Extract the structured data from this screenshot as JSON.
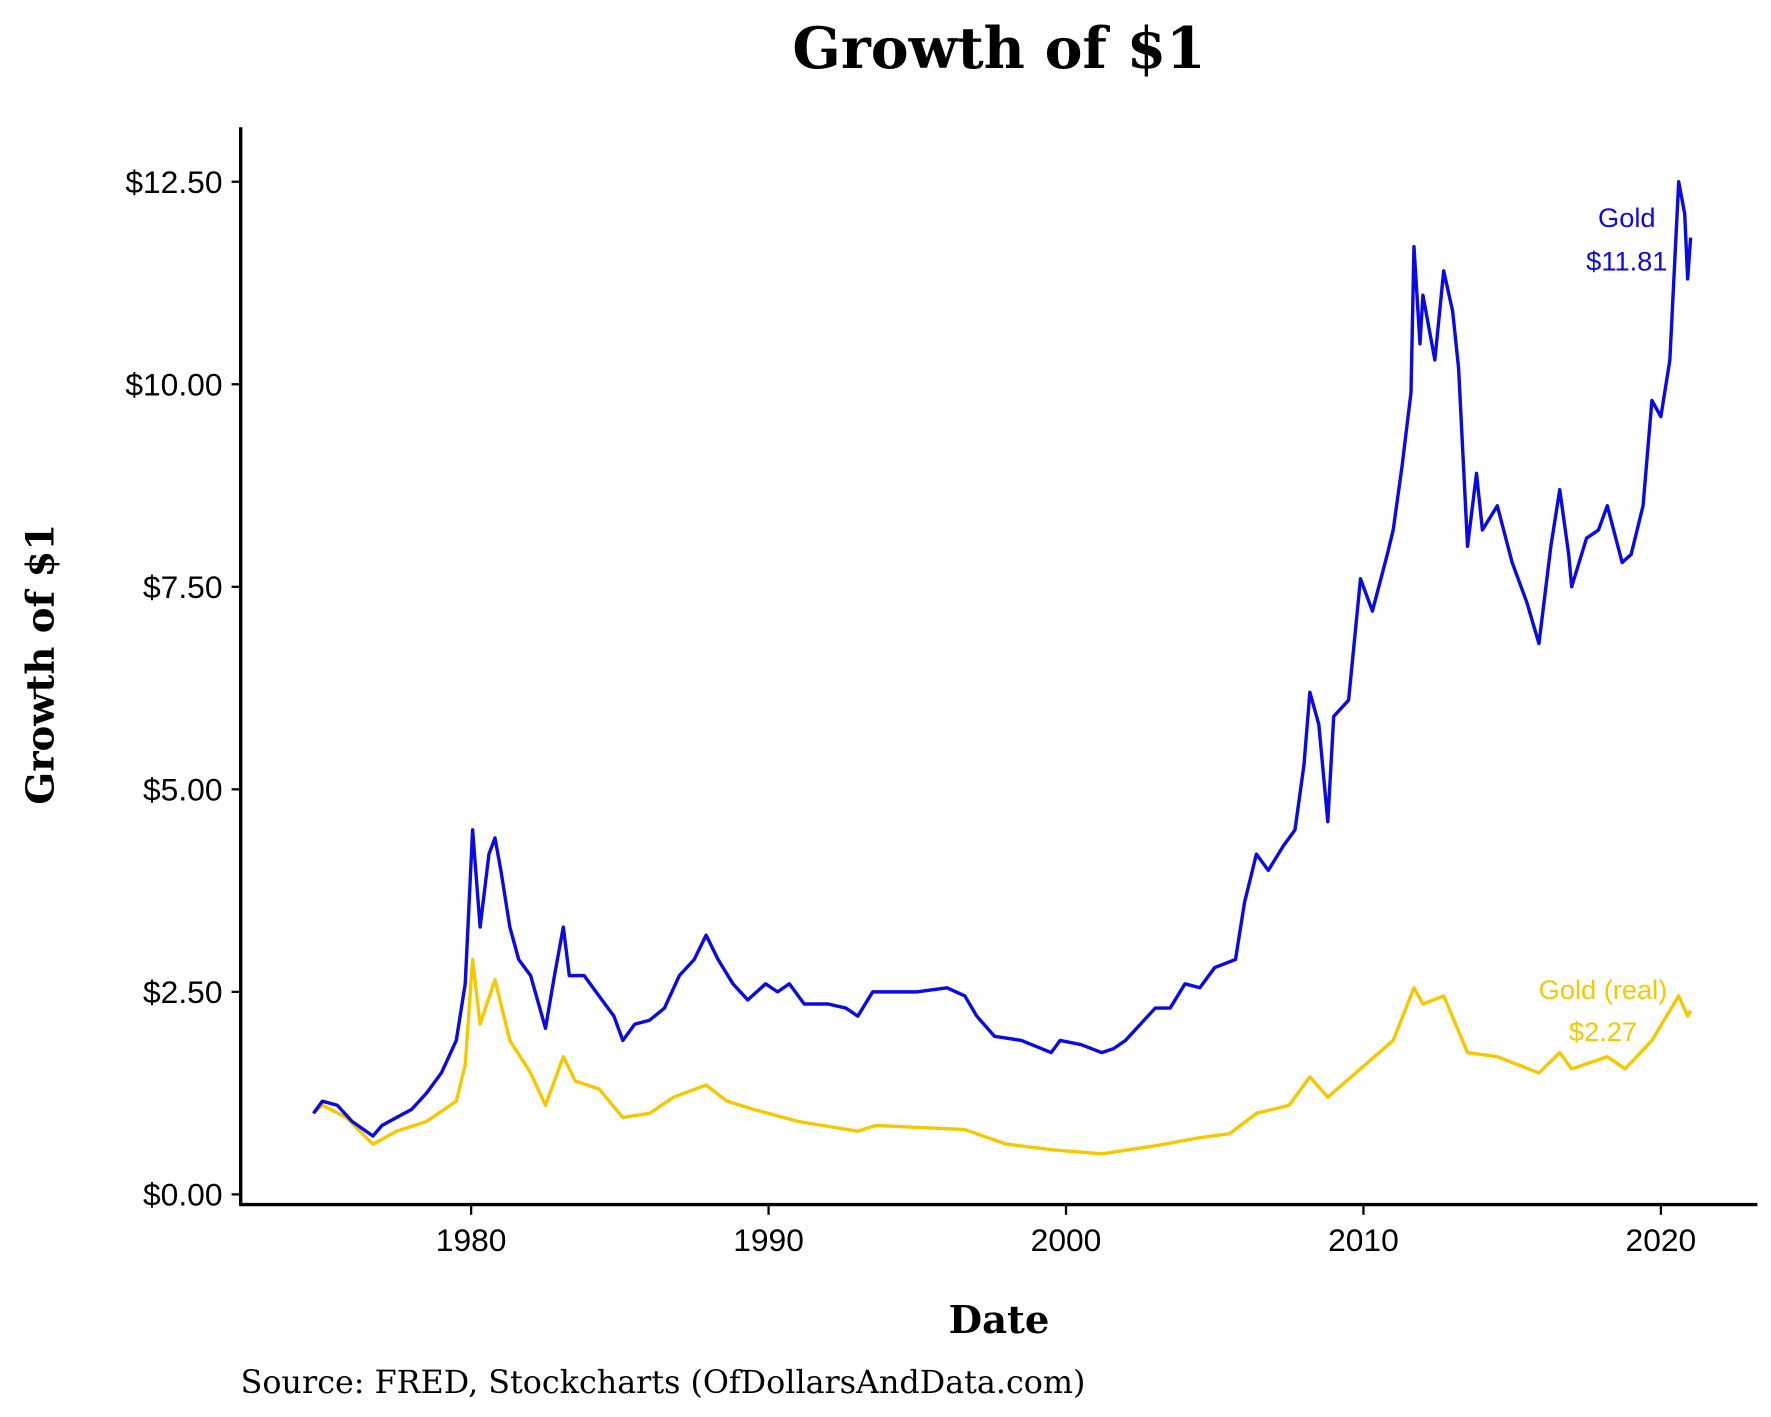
{
  "chart_data": {
    "type": "line",
    "title": "Growth of $1",
    "xlabel": "Date",
    "ylabel": "Growth of $1",
    "source": "Source:  FRED, Stockcharts (OfDollarsAndData.com)",
    "xlim": [
      1974,
      2023
    ],
    "ylim": [
      0,
      12.9
    ],
    "x_ticks": [
      1980,
      1990,
      2000,
      2010,
      2020
    ],
    "x_tick_labels": [
      "1980",
      "1990",
      "2000",
      "2010",
      "2020"
    ],
    "y_ticks": [
      0,
      2.5,
      5,
      7.5,
      10,
      12.5
    ],
    "y_tick_labels": [
      "$0.00",
      "$2.50",
      "$5.00",
      "$7.50",
      "$10.00",
      "$12.50"
    ],
    "grid": false,
    "legend": "none (direct labels)",
    "series": [
      {
        "name": "Gold",
        "end_label": "$11.81",
        "color": "#0a0ae6",
        "points": [
          [
            1974.7,
            1.0
          ],
          [
            1975.0,
            1.15
          ],
          [
            1975.5,
            1.1
          ],
          [
            1976.0,
            0.9
          ],
          [
            1976.7,
            0.72
          ],
          [
            1977.0,
            0.85
          ],
          [
            1977.5,
            0.95
          ],
          [
            1978.0,
            1.05
          ],
          [
            1978.5,
            1.25
          ],
          [
            1979.0,
            1.5
          ],
          [
            1979.5,
            1.9
          ],
          [
            1979.8,
            2.6
          ],
          [
            1980.05,
            4.5
          ],
          [
            1980.3,
            3.3
          ],
          [
            1980.6,
            4.2
          ],
          [
            1980.8,
            4.4
          ],
          [
            1981.0,
            4.0
          ],
          [
            1981.3,
            3.3
          ],
          [
            1981.6,
            2.9
          ],
          [
            1982.0,
            2.7
          ],
          [
            1982.5,
            2.05
          ],
          [
            1982.8,
            2.7
          ],
          [
            1983.1,
            3.3
          ],
          [
            1983.3,
            2.7
          ],
          [
            1983.8,
            2.7
          ],
          [
            1984.2,
            2.5
          ],
          [
            1984.8,
            2.2
          ],
          [
            1985.1,
            1.9
          ],
          [
            1985.5,
            2.1
          ],
          [
            1986.0,
            2.15
          ],
          [
            1986.5,
            2.3
          ],
          [
            1987.0,
            2.7
          ],
          [
            1987.5,
            2.9
          ],
          [
            1987.9,
            3.2
          ],
          [
            1988.3,
            2.9
          ],
          [
            1988.8,
            2.6
          ],
          [
            1989.3,
            2.4
          ],
          [
            1989.9,
            2.6
          ],
          [
            1990.3,
            2.5
          ],
          [
            1990.7,
            2.6
          ],
          [
            1991.2,
            2.35
          ],
          [
            1992.0,
            2.35
          ],
          [
            1992.6,
            2.3
          ],
          [
            1993.0,
            2.2
          ],
          [
            1993.5,
            2.5
          ],
          [
            1994.0,
            2.5
          ],
          [
            1995.0,
            2.5
          ],
          [
            1996.0,
            2.55
          ],
          [
            1996.6,
            2.45
          ],
          [
            1997.0,
            2.2
          ],
          [
            1997.6,
            1.95
          ],
          [
            1998.5,
            1.9
          ],
          [
            1999.5,
            1.75
          ],
          [
            1999.8,
            1.9
          ],
          [
            2000.5,
            1.85
          ],
          [
            2001.2,
            1.75
          ],
          [
            2001.6,
            1.8
          ],
          [
            2002.0,
            1.9
          ],
          [
            2002.5,
            2.1
          ],
          [
            2003.0,
            2.3
          ],
          [
            2003.5,
            2.3
          ],
          [
            2004.0,
            2.6
          ],
          [
            2004.5,
            2.55
          ],
          [
            2005.0,
            2.8
          ],
          [
            2005.7,
            2.9
          ],
          [
            2006.0,
            3.6
          ],
          [
            2006.4,
            4.2
          ],
          [
            2006.8,
            4.0
          ],
          [
            2007.3,
            4.3
          ],
          [
            2007.7,
            4.5
          ],
          [
            2008.0,
            5.3
          ],
          [
            2008.2,
            6.2
          ],
          [
            2008.5,
            5.8
          ],
          [
            2008.8,
            4.6
          ],
          [
            2009.0,
            5.9
          ],
          [
            2009.5,
            6.1
          ],
          [
            2009.9,
            7.6
          ],
          [
            2010.3,
            7.2
          ],
          [
            2010.8,
            7.9
          ],
          [
            2011.0,
            8.2
          ],
          [
            2011.3,
            9.0
          ],
          [
            2011.6,
            9.9
          ],
          [
            2011.7,
            11.7
          ],
          [
            2011.9,
            10.5
          ],
          [
            2012.0,
            11.1
          ],
          [
            2012.4,
            10.3
          ],
          [
            2012.7,
            11.4
          ],
          [
            2013.0,
            10.9
          ],
          [
            2013.2,
            10.2
          ],
          [
            2013.5,
            8.0
          ],
          [
            2013.8,
            8.9
          ],
          [
            2014.0,
            8.2
          ],
          [
            2014.5,
            8.5
          ],
          [
            2015.0,
            7.8
          ],
          [
            2015.5,
            7.3
          ],
          [
            2015.9,
            6.8
          ],
          [
            2016.3,
            8.0
          ],
          [
            2016.6,
            8.7
          ],
          [
            2016.9,
            7.9
          ],
          [
            2017.0,
            7.5
          ],
          [
            2017.5,
            8.1
          ],
          [
            2017.9,
            8.2
          ],
          [
            2018.2,
            8.5
          ],
          [
            2018.7,
            7.8
          ],
          [
            2019.0,
            7.9
          ],
          [
            2019.4,
            8.5
          ],
          [
            2019.7,
            9.8
          ],
          [
            2020.0,
            9.6
          ],
          [
            2020.3,
            10.3
          ],
          [
            2020.6,
            12.5
          ],
          [
            2020.8,
            12.1
          ],
          [
            2020.9,
            11.3
          ],
          [
            2021.0,
            11.81
          ]
        ]
      },
      {
        "name": "Gold (real)",
        "end_label": "$2.27",
        "color": "#f5c800",
        "points": [
          [
            1974.7,
            1.0
          ],
          [
            1975.0,
            1.1
          ],
          [
            1975.8,
            0.95
          ],
          [
            1976.7,
            0.62
          ],
          [
            1977.5,
            0.78
          ],
          [
            1978.5,
            0.9
          ],
          [
            1979.5,
            1.15
          ],
          [
            1979.8,
            1.6
          ],
          [
            1980.05,
            2.9
          ],
          [
            1980.3,
            2.1
          ],
          [
            1980.8,
            2.65
          ],
          [
            1981.3,
            1.9
          ],
          [
            1982.0,
            1.5
          ],
          [
            1982.5,
            1.1
          ],
          [
            1983.1,
            1.7
          ],
          [
            1983.5,
            1.4
          ],
          [
            1984.3,
            1.3
          ],
          [
            1985.1,
            0.95
          ],
          [
            1986.0,
            1.0
          ],
          [
            1986.8,
            1.2
          ],
          [
            1987.9,
            1.35
          ],
          [
            1988.6,
            1.15
          ],
          [
            1989.5,
            1.05
          ],
          [
            1991.0,
            0.9
          ],
          [
            1993.0,
            0.78
          ],
          [
            1993.6,
            0.85
          ],
          [
            1996.6,
            0.8
          ],
          [
            1998.0,
            0.62
          ],
          [
            1999.6,
            0.55
          ],
          [
            2001.2,
            0.5
          ],
          [
            2003.0,
            0.6
          ],
          [
            2004.5,
            0.7
          ],
          [
            2005.5,
            0.75
          ],
          [
            2006.4,
            1.0
          ],
          [
            2007.5,
            1.1
          ],
          [
            2008.2,
            1.45
          ],
          [
            2008.8,
            1.2
          ],
          [
            2009.9,
            1.55
          ],
          [
            2011.0,
            1.9
          ],
          [
            2011.7,
            2.55
          ],
          [
            2012.0,
            2.35
          ],
          [
            2012.7,
            2.45
          ],
          [
            2013.5,
            1.75
          ],
          [
            2014.5,
            1.7
          ],
          [
            2015.9,
            1.5
          ],
          [
            2016.6,
            1.75
          ],
          [
            2017.0,
            1.55
          ],
          [
            2018.2,
            1.7
          ],
          [
            2018.8,
            1.55
          ],
          [
            2019.7,
            1.9
          ],
          [
            2020.6,
            2.45
          ],
          [
            2020.9,
            2.2
          ],
          [
            2021.0,
            2.27
          ]
        ]
      }
    ]
  }
}
